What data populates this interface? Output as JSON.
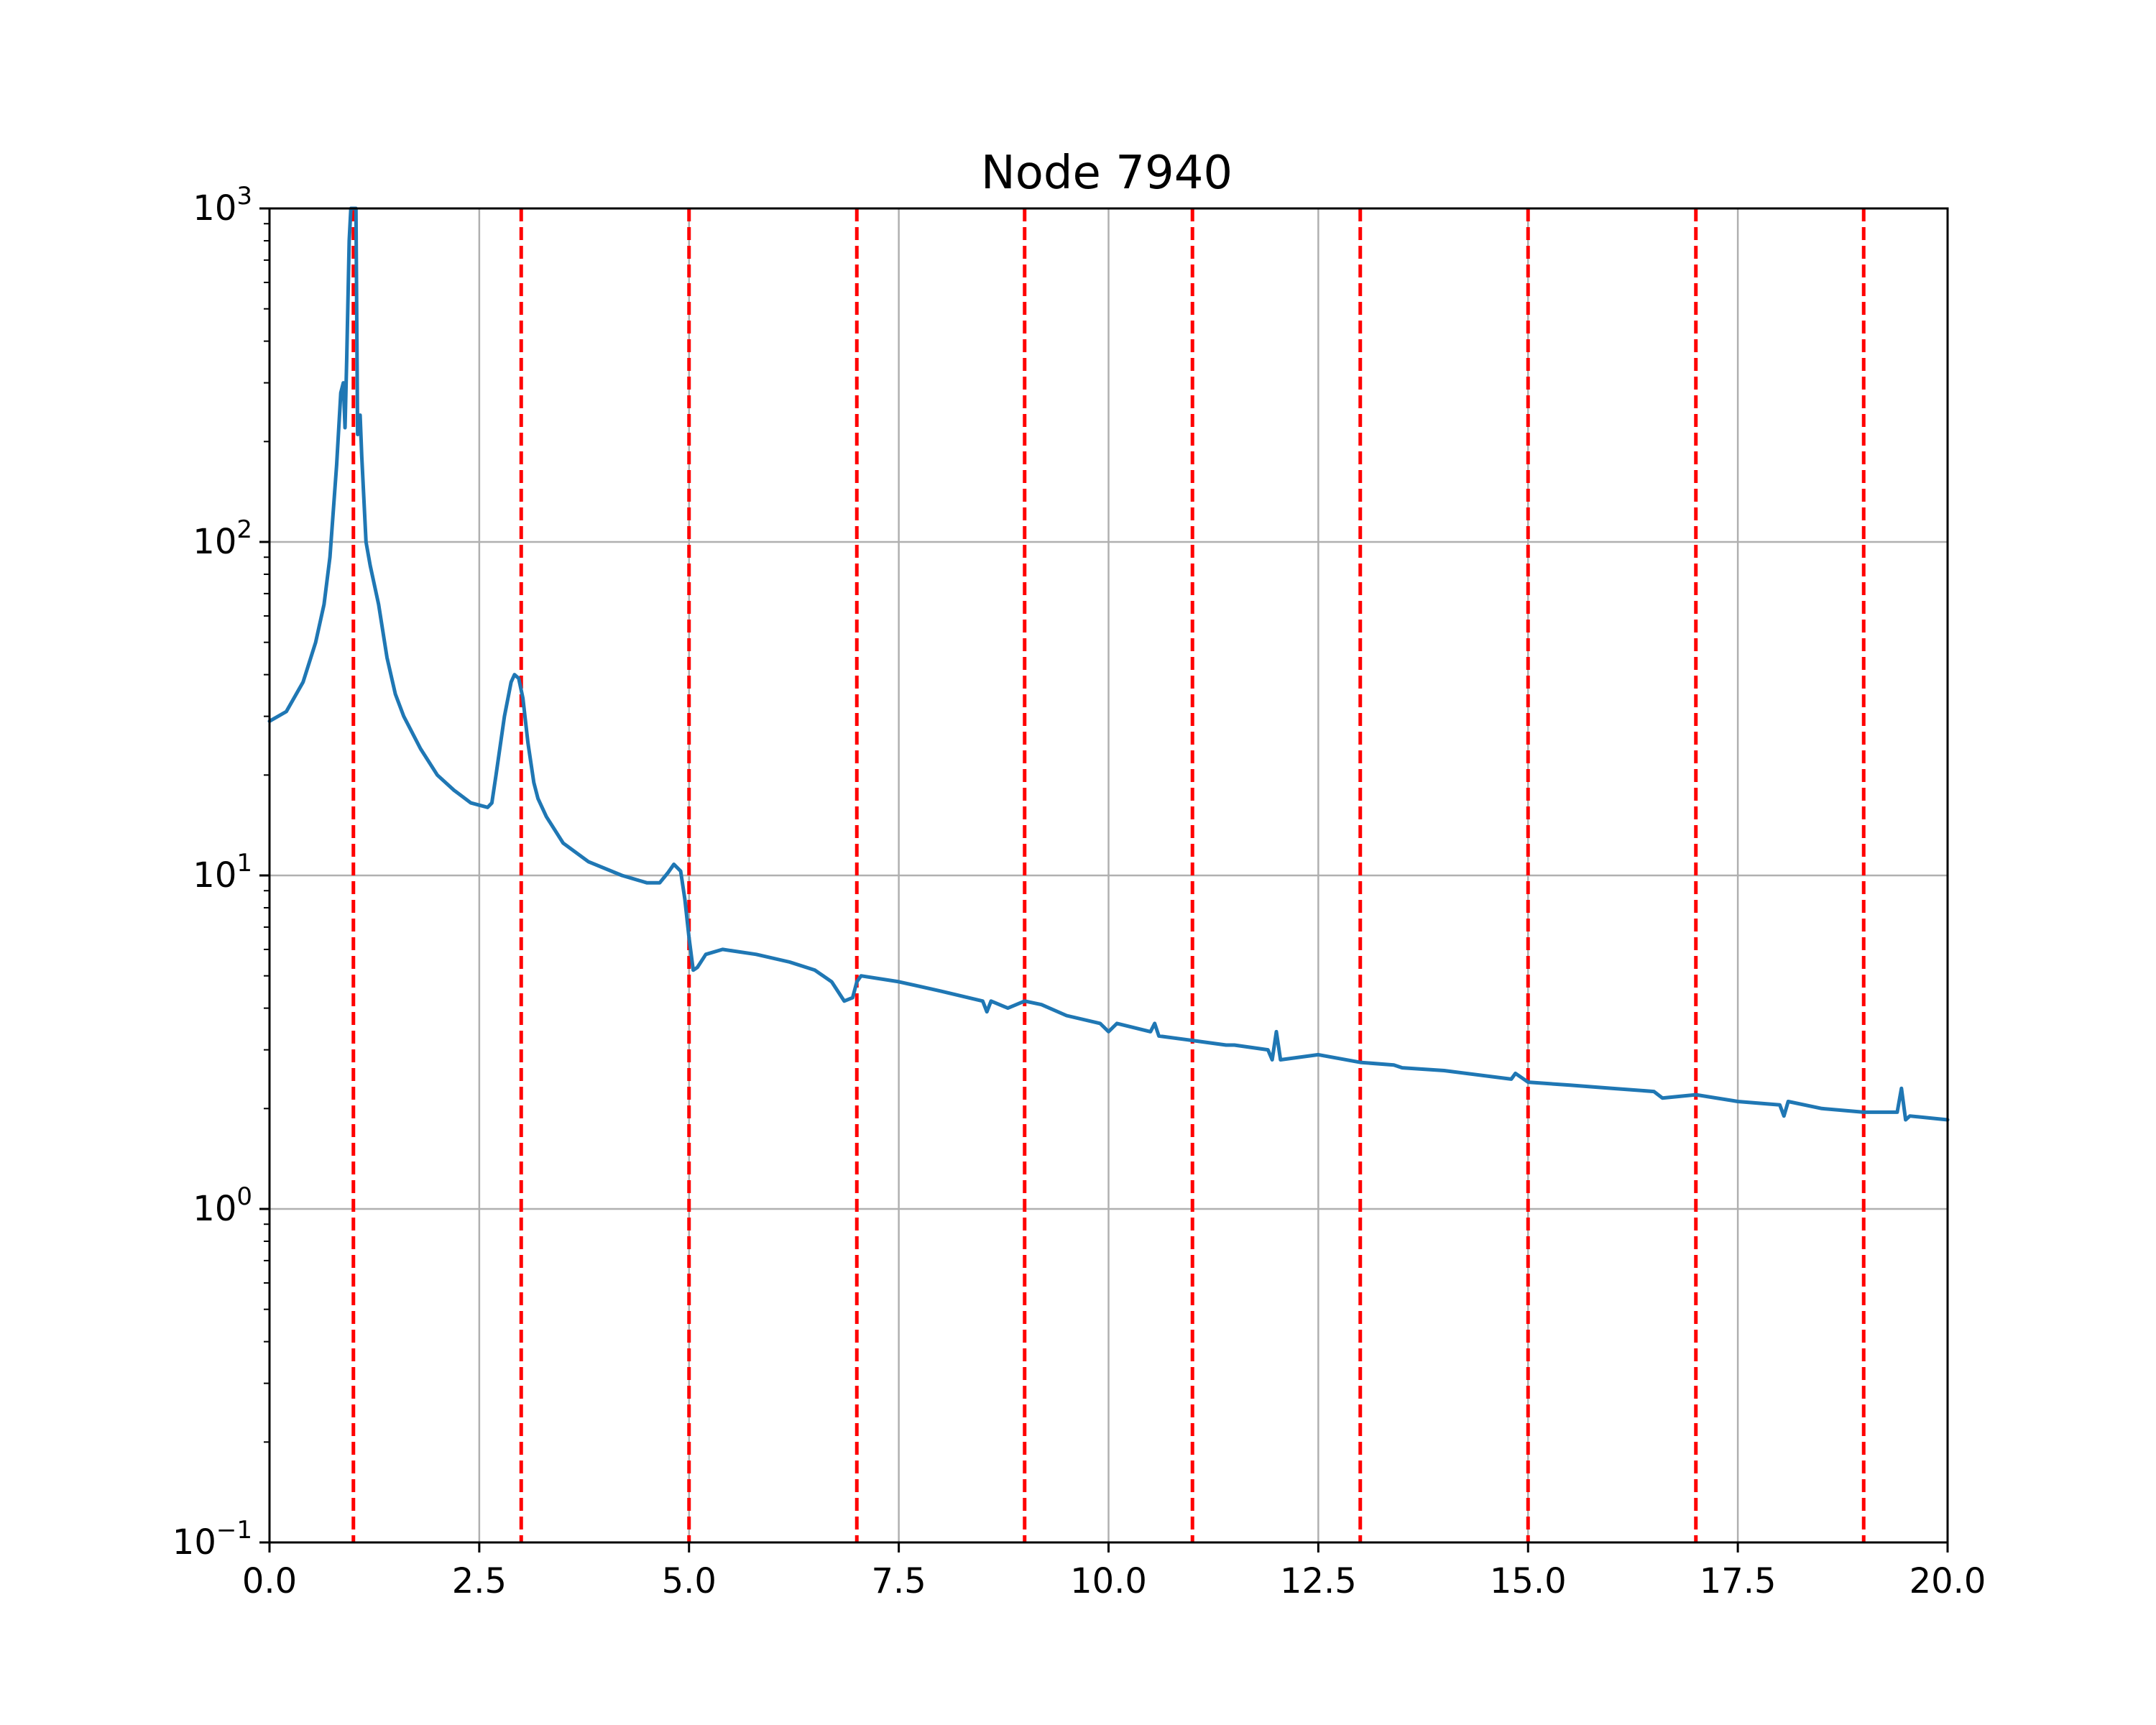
{
  "chart_data": {
    "type": "line",
    "title": "Node 7940",
    "xlabel": "",
    "ylabel": "",
    "xlim": [
      0,
      20
    ],
    "ylim": [
      0.1,
      1000
    ],
    "yscale": "log",
    "grid": true,
    "x_ticks": [
      "0.0",
      "2.5",
      "5.0",
      "7.5",
      "10.0",
      "12.5",
      "15.0",
      "17.5",
      "20.0"
    ],
    "y_ticks": [
      {
        "base": "10",
        "exp": "−1",
        "value": 0.1
      },
      {
        "base": "10",
        "exp": "0",
        "value": 1
      },
      {
        "base": "10",
        "exp": "1",
        "value": 10
      },
      {
        "base": "10",
        "exp": "2",
        "value": 100
      },
      {
        "base": "10",
        "exp": "3",
        "value": 1000
      }
    ],
    "reference_lines_x": [
      1,
      3,
      5,
      7,
      9,
      11,
      13,
      15,
      17,
      19
    ],
    "colors": {
      "series": "#1f77b4",
      "reference": "#ff0000",
      "grid": "#b0b0b0"
    },
    "series": [
      {
        "x": [
          0,
          0.2,
          0.4,
          0.55,
          0.65,
          0.72,
          0.8,
          0.85,
          0.88,
          0.9,
          0.92,
          0.95,
          0.97,
          1.0,
          1.03,
          1.05,
          1.08,
          1.1,
          1.15,
          1.2,
          1.3,
          1.4,
          1.5,
          1.6,
          1.8,
          2.0,
          2.2,
          2.4,
          2.6,
          2.65,
          2.7,
          2.8,
          2.88,
          2.92,
          2.97,
          3.02,
          3.08,
          3.15,
          3.2,
          3.3,
          3.5,
          3.8,
          4.2,
          4.5,
          4.65,
          4.75,
          4.82,
          4.9,
          4.95,
          5.0,
          5.05,
          5.1,
          5.2,
          5.4,
          5.8,
          6.2,
          6.5,
          6.7,
          6.85,
          6.95,
          7.0,
          7.05,
          7.5,
          8.0,
          8.5,
          8.55,
          8.6,
          8.8,
          9.0,
          9.2,
          9.5,
          9.9,
          10.0,
          10.1,
          10.5,
          10.55,
          10.6,
          11.0,
          11.4,
          11.5,
          11.9,
          11.95,
          12.0,
          12.05,
          12.5,
          13.0,
          13.4,
          13.5,
          14.0,
          14.8,
          14.85,
          15.0,
          15.5,
          16.0,
          16.5,
          16.6,
          17.0,
          17.5,
          18.0,
          18.05,
          18.1,
          18.5,
          19.0,
          19.4,
          19.45,
          19.5,
          19.55,
          20.0
        ],
        "y": [
          29,
          31,
          38,
          50,
          65,
          90,
          170,
          280,
          300,
          220,
          350,
          800,
          1000,
          1000,
          1000,
          210,
          240,
          180,
          100,
          85,
          65,
          45,
          35,
          30,
          24,
          20,
          18,
          16.5,
          16,
          16.5,
          20,
          30,
          38,
          40,
          39,
          34,
          25,
          19,
          17,
          15,
          12.5,
          11,
          10,
          9.5,
          9.5,
          10.2,
          10.8,
          10.3,
          8.5,
          6.5,
          5.2,
          5.3,
          5.8,
          6.0,
          5.8,
          5.5,
          5.2,
          4.8,
          4.2,
          4.3,
          4.8,
          5.0,
          4.8,
          4.5,
          4.2,
          3.9,
          4.2,
          4.0,
          4.2,
          4.1,
          3.8,
          3.6,
          3.4,
          3.6,
          3.4,
          3.6,
          3.3,
          3.2,
          3.1,
          3.1,
          3.0,
          2.8,
          3.4,
          2.8,
          2.9,
          2.75,
          2.7,
          2.65,
          2.6,
          2.45,
          2.55,
          2.4,
          2.35,
          2.3,
          2.25,
          2.15,
          2.2,
          2.1,
          2.05,
          1.9,
          2.1,
          2.0,
          1.95,
          1.95,
          2.3,
          1.85,
          1.9,
          1.85
        ]
      }
    ]
  }
}
